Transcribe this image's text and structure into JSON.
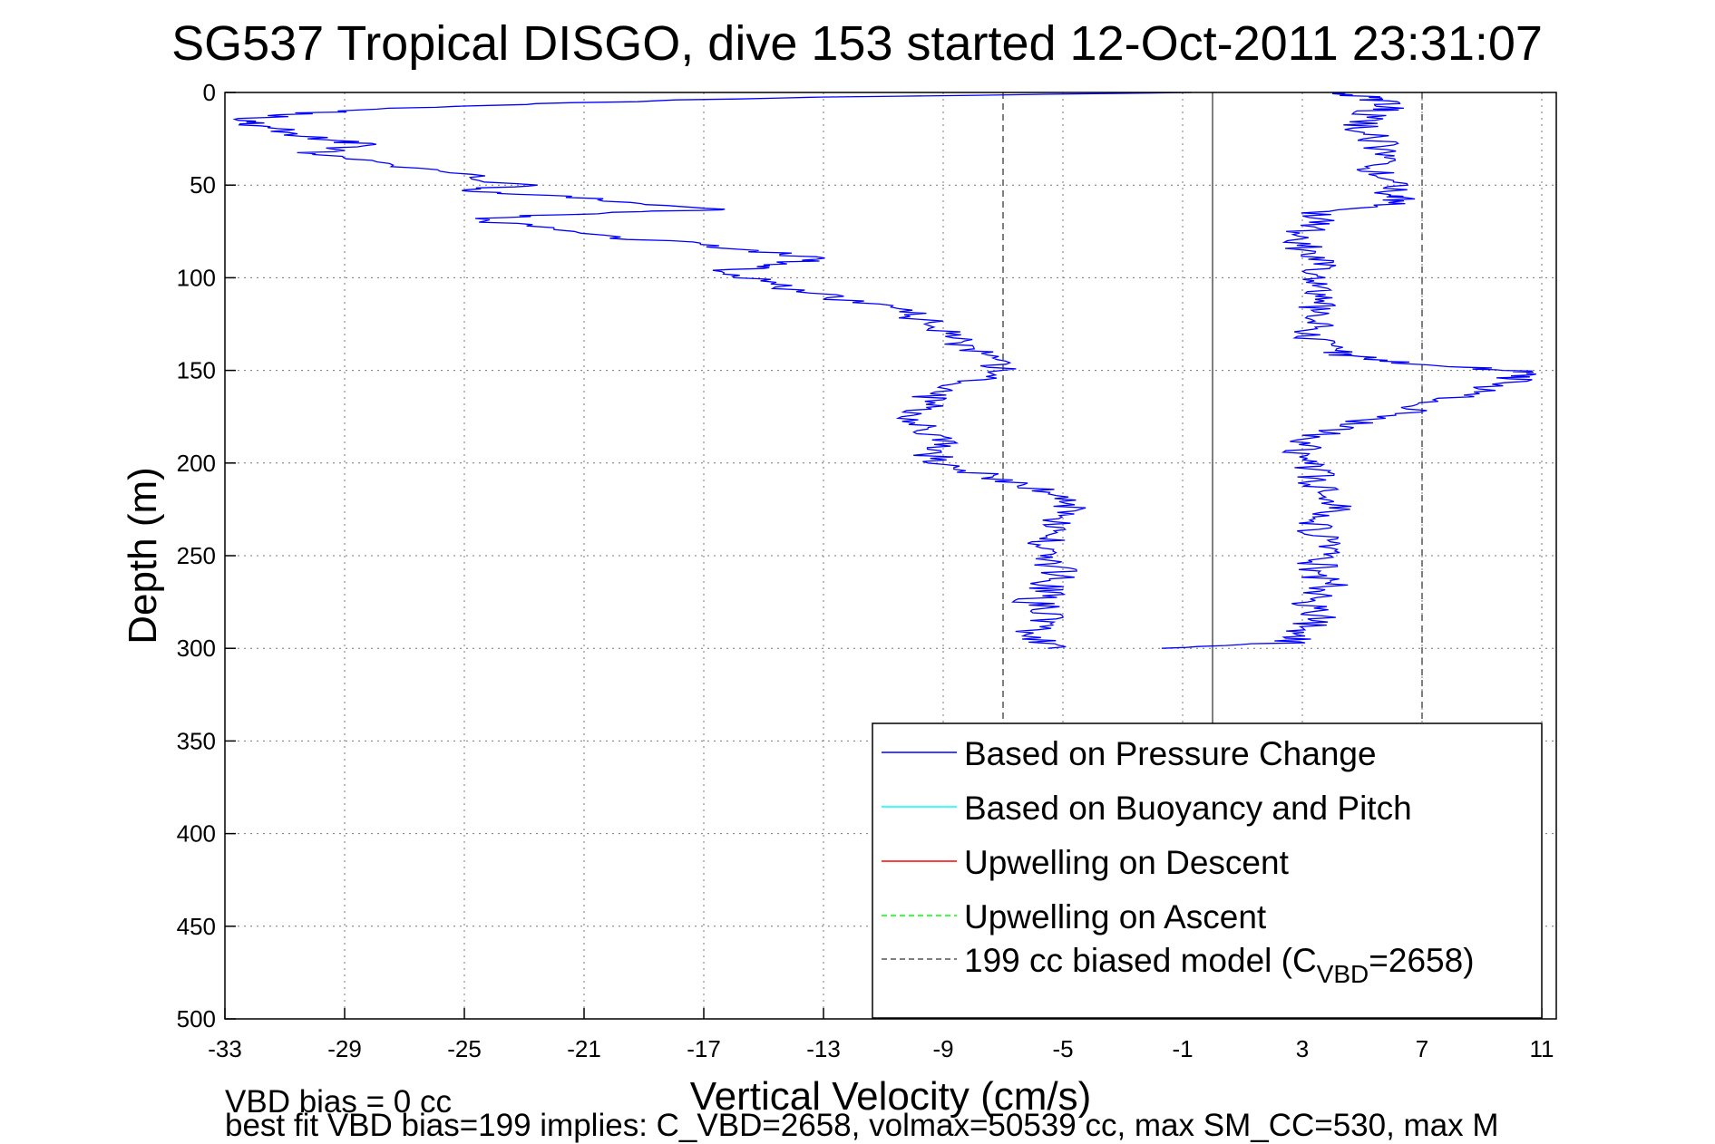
{
  "chart_data": {
    "type": "line",
    "title": "SG537 Tropical DISGO, dive 153 started 12-Oct-2011 23:31:07",
    "xlabel": "Vertical Velocity (cm/s)",
    "ylabel": "Depth (m)",
    "xlim": [
      -33,
      12
    ],
    "ylim": [
      0,
      500
    ],
    "y_reversed": true,
    "grid": true,
    "legend_position": "bottom-right",
    "xticks": [
      "-33",
      "-29",
      "-25",
      "-21",
      "-17",
      "-13",
      "-9",
      "-5",
      "-1",
      "3",
      "7",
      "11"
    ],
    "yticks": [
      "0",
      "50",
      "100",
      "150",
      "200",
      "250",
      "300",
      "350",
      "400",
      "450",
      "500"
    ],
    "legend": [
      {
        "label": "Based on Pressure Change",
        "color": "#0000ff",
        "style": "solid"
      },
      {
        "label": "Based on Buoyancy and Pitch",
        "color": "#00ffff",
        "style": "solid"
      },
      {
        "label": "Upwelling on Descent",
        "color": "#ff0000",
        "style": "solid"
      },
      {
        "label": "Upwelling on Ascent",
        "color": "#00ff00",
        "style": "dashed"
      },
      {
        "label": "199 cc biased model (C",
        "sub": "VBD",
        "tail": "=2658)",
        "color": "#555555",
        "style": "dashed"
      }
    ],
    "reference_lines": {
      "zero_line_x": 0,
      "model_descent_x": -7,
      "model_ascent_x": 7
    },
    "series": [
      {
        "name": "Based on Pressure Change",
        "color": "#0000ff",
        "descent": {
          "depth": [
            0,
            3,
            6,
            9,
            12,
            15,
            18,
            21,
            25,
            28,
            32,
            35,
            40,
            45,
            50,
            53,
            56,
            60,
            63,
            65,
            68,
            72,
            78,
            82,
            86,
            90,
            93,
            96,
            100,
            105,
            110,
            115,
            120,
            125,
            130,
            135,
            140,
            145,
            150,
            155,
            160,
            165,
            170,
            175,
            180,
            185,
            190,
            195,
            200,
            205,
            210,
            215,
            220,
            225,
            230,
            235,
            240,
            245,
            250,
            255,
            260,
            265,
            270,
            275,
            280,
            285,
            290,
            295,
            300
          ],
          "velocity": [
            0,
            -15,
            -22,
            -28,
            -31,
            -32.5,
            -32,
            -31,
            -30,
            -28,
            -30,
            -29.5,
            -27,
            -25,
            -23,
            -25,
            -22,
            -19,
            -16.5,
            -20,
            -25,
            -23,
            -20,
            -17,
            -15,
            -13,
            -15,
            -16,
            -15.5,
            -14.5,
            -13,
            -11,
            -10,
            -9.5,
            -8.5,
            -8.5,
            -8,
            -7.5,
            -7,
            -8,
            -9,
            -9.5,
            -9.5,
            -10,
            -9.5,
            -9.5,
            -9,
            -9.5,
            -9,
            -8,
            -7,
            -5.5,
            -5,
            -4.5,
            -5,
            -5.5,
            -5.5,
            -5.5,
            -5.5,
            -5.5,
            -5,
            -5.5,
            -5.5,
            -6,
            -5.5,
            -5.5,
            -6,
            -6,
            -5.5
          ]
        },
        "ascent": {
          "depth": [
            300,
            297,
            294,
            290,
            285,
            280,
            275,
            270,
            265,
            260,
            255,
            250,
            245,
            240,
            235,
            230,
            225,
            220,
            215,
            210,
            205,
            200,
            195,
            190,
            185,
            180,
            175,
            170,
            165,
            160,
            155,
            152,
            150,
            148,
            145,
            142,
            140,
            135,
            130,
            125,
            120,
            115,
            110,
            105,
            100,
            95,
            90,
            85,
            80,
            75,
            70,
            65,
            60,
            57,
            55,
            50,
            45,
            40,
            35,
            30,
            25,
            20,
            15,
            10,
            7,
            4,
            2,
            0
          ],
          "velocity": [
            -1,
            2.5,
            3,
            3,
            3.5,
            3.5,
            3,
            3.5,
            4,
            3.5,
            3.5,
            3.5,
            4,
            3.5,
            3.5,
            3.5,
            4,
            4,
            3.5,
            3.5,
            3.5,
            3,
            3,
            3,
            3.5,
            4.5,
            5.5,
            7,
            8,
            9,
            10,
            10.5,
            10,
            8,
            6,
            4.5,
            4,
            3.5,
            3,
            3.5,
            3.5,
            3.5,
            3.5,
            4,
            3.5,
            3.5,
            3.5,
            3,
            3,
            3,
            3.5,
            3.5,
            6,
            6.5,
            6,
            6,
            5.5,
            5.5,
            6,
            5.5,
            5.5,
            5,
            5,
            5.5,
            6,
            5.5,
            5,
            4
          ]
        }
      }
    ]
  },
  "footer": {
    "line1": "VBD bias = 0 cc",
    "line2": "best fit VBD bias=199 implies: C_VBD=2658, volmax=50539 cc, max SM_CC=530, max M"
  }
}
